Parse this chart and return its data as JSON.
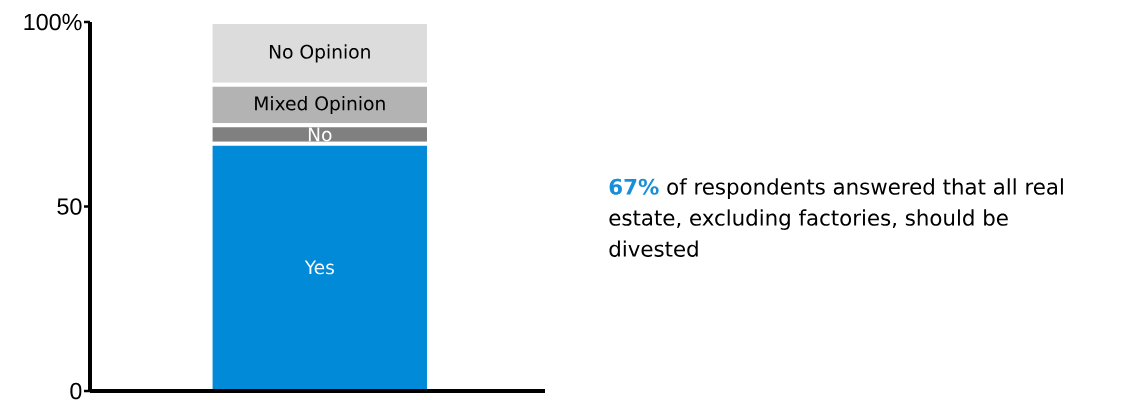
{
  "chart_data": {
    "type": "bar",
    "stacked": true,
    "categories": [
      null
    ],
    "series": [
      {
        "name": "Yes",
        "color": "#008ad8",
        "values": [
          67
        ]
      },
      {
        "name": "No",
        "color": "#808080",
        "values": [
          5
        ]
      },
      {
        "name": "Mixed Opinion",
        "color": "#b3b3b3",
        "values": [
          11
        ]
      },
      {
        "name": "No Opinion",
        "color": "#dcdcdc",
        "values": [
          17
        ]
      }
    ],
    "ylim": [
      0,
      100
    ],
    "yticks": [
      0,
      50,
      {
        "value": 100,
        "label": "100%"
      }
    ],
    "annotations": [
      "**67%** of respondents answered that all real estate, excluding factories, should be divested"
    ]
  }
}
